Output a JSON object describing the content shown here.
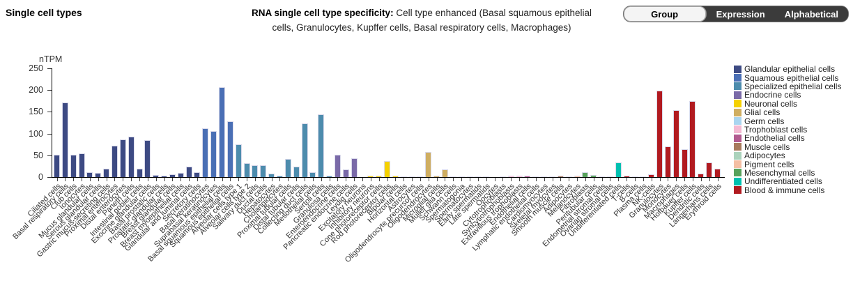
{
  "header": {
    "page_title": "Single cell types",
    "chart_title_bold": "RNA single cell type specificity:",
    "chart_title_rest": " Cell type enhanced (Basal squamous epithelial cells, Granulocytes, Kupffer cells, Basal respiratory cells, Macrophages)",
    "buttons": [
      {
        "label": "Group",
        "active": true
      },
      {
        "label": "Expression",
        "active": false
      },
      {
        "label": "Alphabetical",
        "active": false
      }
    ]
  },
  "chart_data": {
    "type": "bar",
    "title": "RNA single cell type specificity: Cell type enhanced (Basal squamous epithelial cells, Granulocytes, Kupffer cells, Basal respiratory cells, Macrophages)",
    "ylabel": "nTPM",
    "xlabel": "",
    "ylim": [
      0,
      250
    ],
    "yticks": [
      0,
      50,
      100,
      150,
      200,
      250
    ],
    "grid": false,
    "legend_position": "right",
    "groups": [
      {
        "name": "Glandular epithelial cells",
        "color": "#3D4A83",
        "cells": [
          {
            "label": "Ciliated cells",
            "value": 52
          },
          {
            "label": "Basal respiratory cells",
            "value": 172
          },
          {
            "label": "Club cells",
            "value": 52
          },
          {
            "label": "Ionocytes",
            "value": 54
          },
          {
            "label": "Mucus glandular cells",
            "value": 12
          },
          {
            "label": "Serous glandular cells",
            "value": 9
          },
          {
            "label": "Gastric mucus-secreting cells",
            "value": 20
          },
          {
            "label": "Proximal enterocytes",
            "value": 72
          },
          {
            "label": "Distal enterocytes",
            "value": 87
          },
          {
            "label": "Paneth cells",
            "value": 93
          },
          {
            "label": "Intestinal goblet cells",
            "value": 19
          },
          {
            "label": "Exocrine glandular cells",
            "value": 85
          },
          {
            "label": "Basal prostatic cells",
            "value": 5
          },
          {
            "label": "Prostatic glandular cells",
            "value": 4
          },
          {
            "label": "Breast glandular cells",
            "value": 6
          },
          {
            "label": "Breast myoepithelial cells",
            "value": 10
          },
          {
            "label": "Glandular and luminal cells",
            "value": 24
          },
          {
            "label": "Secretory cells",
            "value": 12
          }
        ]
      },
      {
        "name": "Squamous epithelial cells",
        "color": "#4A6FB5",
        "cells": [
          {
            "label": "Basal keratinocytes",
            "value": 112
          },
          {
            "label": "Suprabasal keratinocytes",
            "value": 105
          },
          {
            "label": "Basal squamous epithelial cells",
            "value": 207
          },
          {
            "label": "Squamous epithelial cells",
            "value": 128
          }
        ]
      },
      {
        "name": "Specialized epithelial cells",
        "color": "#4D8CAD",
        "cells": [
          {
            "label": "Alveolar cells type 1",
            "value": 75
          },
          {
            "label": "Alveolar cells type 2",
            "value": 32
          },
          {
            "label": "Salivary duct cells",
            "value": 28
          },
          {
            "label": "Ductal cells",
            "value": 27
          },
          {
            "label": "Hepatocytes",
            "value": 8
          },
          {
            "label": "Cholangiocytes",
            "value": 3
          },
          {
            "label": "Proximal tubular cells",
            "value": 41
          },
          {
            "label": "Distal tubular cells",
            "value": 24
          },
          {
            "label": "Collecting duct cells",
            "value": 123
          },
          {
            "label": "Mesothelial cells",
            "value": 12
          },
          {
            "label": "Sertoli cells",
            "value": 144
          },
          {
            "label": "Granulosa cells",
            "value": 4
          }
        ]
      },
      {
        "name": "Endocrine cells",
        "color": "#7A6AA8",
        "cells": [
          {
            "label": "Enteroendocrine cells",
            "value": 51
          },
          {
            "label": "Pancreatic endocrine cells",
            "value": 17
          },
          {
            "label": "Leydig cells",
            "value": 43
          }
        ]
      },
      {
        "name": "Neuronal cells",
        "color": "#F5D100",
        "cells": [
          {
            "label": "Excitatory neurons",
            "value": 0
          },
          {
            "label": "Inhibitory neurons",
            "value": 3
          },
          {
            "label": "Cone photoreceptor cells",
            "value": 3
          },
          {
            "label": "Rod photoreceptor cells",
            "value": 37
          },
          {
            "label": "Bipolar cells",
            "value": 3
          },
          {
            "label": "Horizontal cells",
            "value": 2
          }
        ]
      },
      {
        "name": "Glial cells",
        "color": "#CFAE61",
        "cells": [
          {
            "label": "Astrocytes",
            "value": 2
          },
          {
            "label": "Oligodendrocyte precursor cells",
            "value": 1
          },
          {
            "label": "Oligodendrocytes",
            "value": 58
          },
          {
            "label": "Microglial cells",
            "value": 3
          },
          {
            "label": "Muller glia cells",
            "value": 18
          },
          {
            "label": "Schwann cells",
            "value": 2
          }
        ]
      },
      {
        "name": "Germ cells",
        "color": "#A9D5F0",
        "cells": [
          {
            "label": "Spermatogonia",
            "value": 2
          },
          {
            "label": "Spermatocytes",
            "value": 1
          },
          {
            "label": "Early spermatids",
            "value": 1
          },
          {
            "label": "Late spermatids",
            "value": 1
          },
          {
            "label": "Oocytes",
            "value": 0
          }
        ]
      },
      {
        "name": "Trophoblast cells",
        "color": "#F4BAD3",
        "cells": [
          {
            "label": "Cytotrophoblasts",
            "value": 2
          },
          {
            "label": "Syncytiotrophoblasts",
            "value": 4
          },
          {
            "label": "Extravillous trophoblasts",
            "value": 3
          }
        ]
      },
      {
        "name": "Endothelial cells",
        "color": "#B25A90",
        "cells": [
          {
            "label": "Endothelial cells",
            "value": 4
          },
          {
            "label": "Lymphatic endothelial cells",
            "value": 2
          }
        ]
      },
      {
        "name": "Muscle cells",
        "color": "#A87B5D",
        "cells": [
          {
            "label": "Cardiomyocytes",
            "value": 2
          },
          {
            "label": "Skeletal myocytes",
            "value": 1
          },
          {
            "label": "Smooth muscle cells",
            "value": 3
          }
        ]
      },
      {
        "name": "Adipocytes",
        "color": "#ABD3BC",
        "cells": [
          {
            "label": "Adipocytes",
            "value": 2
          }
        ]
      },
      {
        "name": "Pigment cells",
        "color": "#F4BFA4",
        "cells": [
          {
            "label": "Melanocytes",
            "value": 3
          }
        ]
      },
      {
        "name": "Mesenchymal cells",
        "color": "#57A25B",
        "cells": [
          {
            "label": "Fibroblasts",
            "value": 12
          },
          {
            "label": "Peritubular cells",
            "value": 5
          },
          {
            "label": "Endometrial stromal cells",
            "value": 2
          },
          {
            "label": "Ovarian stromal cells",
            "value": 1
          }
        ]
      },
      {
        "name": "Undifferentiated cells",
        "color": "#00C0B0",
        "cells": [
          {
            "label": "Undifferentiated cells",
            "value": 33
          }
        ]
      },
      {
        "name": "Blood & immune cells",
        "color": "#B11A20",
        "cells": [
          {
            "label": "T-cells",
            "value": 4
          },
          {
            "label": "B-cells",
            "value": 1
          },
          {
            "label": "Plasma cells",
            "value": 2
          },
          {
            "label": "NK-cells",
            "value": 6
          },
          {
            "label": "Granulocytes",
            "value": 198
          },
          {
            "label": "Monocytes",
            "value": 71
          },
          {
            "label": "Macrophages",
            "value": 154
          },
          {
            "label": "Hofbauer cells",
            "value": 64
          },
          {
            "label": "Kupffer cells",
            "value": 174
          },
          {
            "label": "Dendritic cells",
            "value": 8
          },
          {
            "label": "Langerhans cells",
            "value": 33
          },
          {
            "label": "Erythroid cells",
            "value": 20
          }
        ]
      }
    ]
  }
}
